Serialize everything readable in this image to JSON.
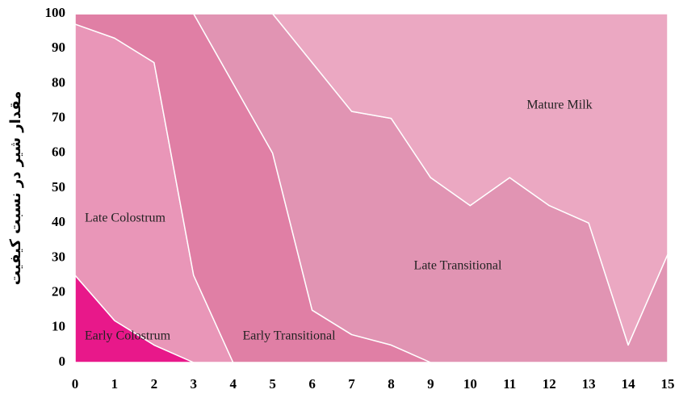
{
  "chart_data": {
    "type": "stacked_area",
    "y_label": "مقدار شیر در نسبت کیفیت",
    "x": [
      0,
      1,
      2,
      3,
      4,
      5,
      6,
      7,
      8,
      9,
      10,
      11,
      12,
      13,
      14,
      15
    ],
    "series": [
      {
        "name": "Early Colostrum",
        "color": "#e8188a",
        "values": [
          25,
          12,
          5,
          0,
          0,
          0,
          0,
          0,
          0,
          0,
          0,
          0,
          0,
          0,
          0,
          0
        ]
      },
      {
        "name": "Late Colostrum",
        "color": "#e996b8",
        "values": [
          72,
          81,
          81,
          25,
          0,
          0,
          0,
          0,
          0,
          0,
          0,
          0,
          0,
          0,
          0,
          0
        ]
      },
      {
        "name": "Early Transitional",
        "color": "#e07fa5",
        "values": [
          3,
          7,
          14,
          75,
          80,
          60,
          15,
          8,
          5,
          0,
          0,
          0,
          0,
          0,
          0,
          0
        ]
      },
      {
        "name": "Late Transitional",
        "color": "#e194b3",
        "values": [
          0,
          0,
          0,
          0,
          20,
          40,
          71,
          64,
          65,
          53,
          45,
          53,
          45,
          40,
          5,
          31
        ]
      },
      {
        "name": "Mature Milk",
        "color": "#eba8c2",
        "values": [
          0,
          0,
          0,
          0,
          0,
          0,
          14,
          28,
          30,
          47,
          55,
          47,
          55,
          60,
          95,
          69
        ]
      }
    ],
    "xlim": [
      0,
      15
    ],
    "xticks": [
      0,
      1,
      2,
      3,
      4,
      5,
      6,
      7,
      8,
      9,
      10,
      11,
      12,
      13,
      14,
      15
    ],
    "ylim": [
      0,
      100
    ],
    "yticks": [
      0,
      10,
      20,
      30,
      40,
      50,
      60,
      70,
      80,
      90,
      100
    ]
  }
}
